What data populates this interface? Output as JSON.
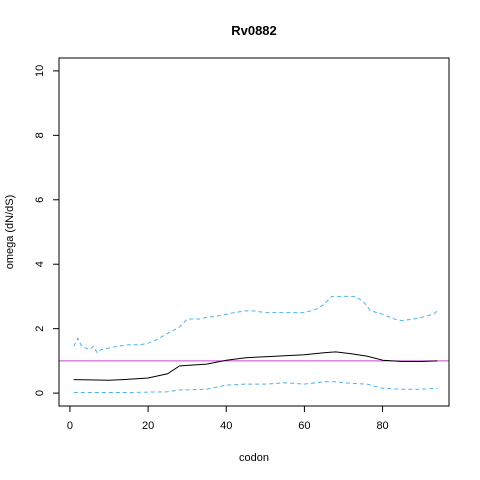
{
  "chart_data": {
    "type": "line",
    "title": "Rv0882",
    "xlabel": "codon",
    "ylabel": "omega (dN/dS)",
    "xlim": [
      -2.8,
      97
    ],
    "ylim": [
      -0.4,
      10.4
    ],
    "xticks": [
      0,
      20,
      40,
      60,
      80
    ],
    "yticks": [
      0,
      2,
      4,
      6,
      8,
      10
    ],
    "grid": false,
    "reference_line": {
      "y": 1,
      "color": "#cc44cc"
    },
    "series": [
      {
        "style": "solid",
        "color": "#000000",
        "x": [
          1,
          5,
          10,
          15,
          20,
          25,
          28,
          30,
          35,
          40,
          45,
          50,
          55,
          60,
          65,
          68,
          72,
          76,
          80,
          85,
          90,
          94
        ],
        "y": [
          0.42,
          0.41,
          0.4,
          0.43,
          0.47,
          0.6,
          0.84,
          0.86,
          0.9,
          1.02,
          1.1,
          1.13,
          1.16,
          1.19,
          1.25,
          1.28,
          1.22,
          1.15,
          1.02,
          0.98,
          0.98,
          1.0
        ]
      },
      {
        "style": "dashed",
        "color": "#4fb3e8",
        "x": [
          1,
          2,
          3,
          5,
          6,
          7,
          8,
          10,
          12,
          15,
          18,
          20,
          22,
          25,
          28,
          30,
          33,
          35,
          38,
          40,
          42,
          45,
          47,
          50,
          55,
          60,
          63,
          65,
          67,
          70,
          73,
          75,
          77,
          80,
          83,
          85,
          88,
          90,
          93,
          94
        ],
        "y": [
          1.45,
          1.7,
          1.45,
          1.35,
          1.45,
          1.25,
          1.35,
          1.4,
          1.45,
          1.5,
          1.5,
          1.55,
          1.65,
          1.85,
          2.05,
          2.3,
          2.3,
          2.35,
          2.4,
          2.45,
          2.5,
          2.55,
          2.55,
          2.5,
          2.5,
          2.5,
          2.6,
          2.75,
          3.0,
          3.0,
          3.0,
          2.85,
          2.55,
          2.45,
          2.3,
          2.25,
          2.3,
          2.35,
          2.45,
          2.55
        ]
      },
      {
        "style": "dashed",
        "color": "#4fb3e8",
        "x": [
          1,
          5,
          10,
          15,
          20,
          25,
          28,
          30,
          35,
          40,
          45,
          50,
          55,
          60,
          65,
          68,
          72,
          76,
          80,
          85,
          90,
          94
        ],
        "y": [
          0.02,
          0.02,
          0.02,
          0.02,
          0.03,
          0.04,
          0.1,
          0.1,
          0.12,
          0.25,
          0.28,
          0.28,
          0.32,
          0.28,
          0.35,
          0.35,
          0.3,
          0.28,
          0.15,
          0.12,
          0.12,
          0.15
        ]
      }
    ]
  }
}
